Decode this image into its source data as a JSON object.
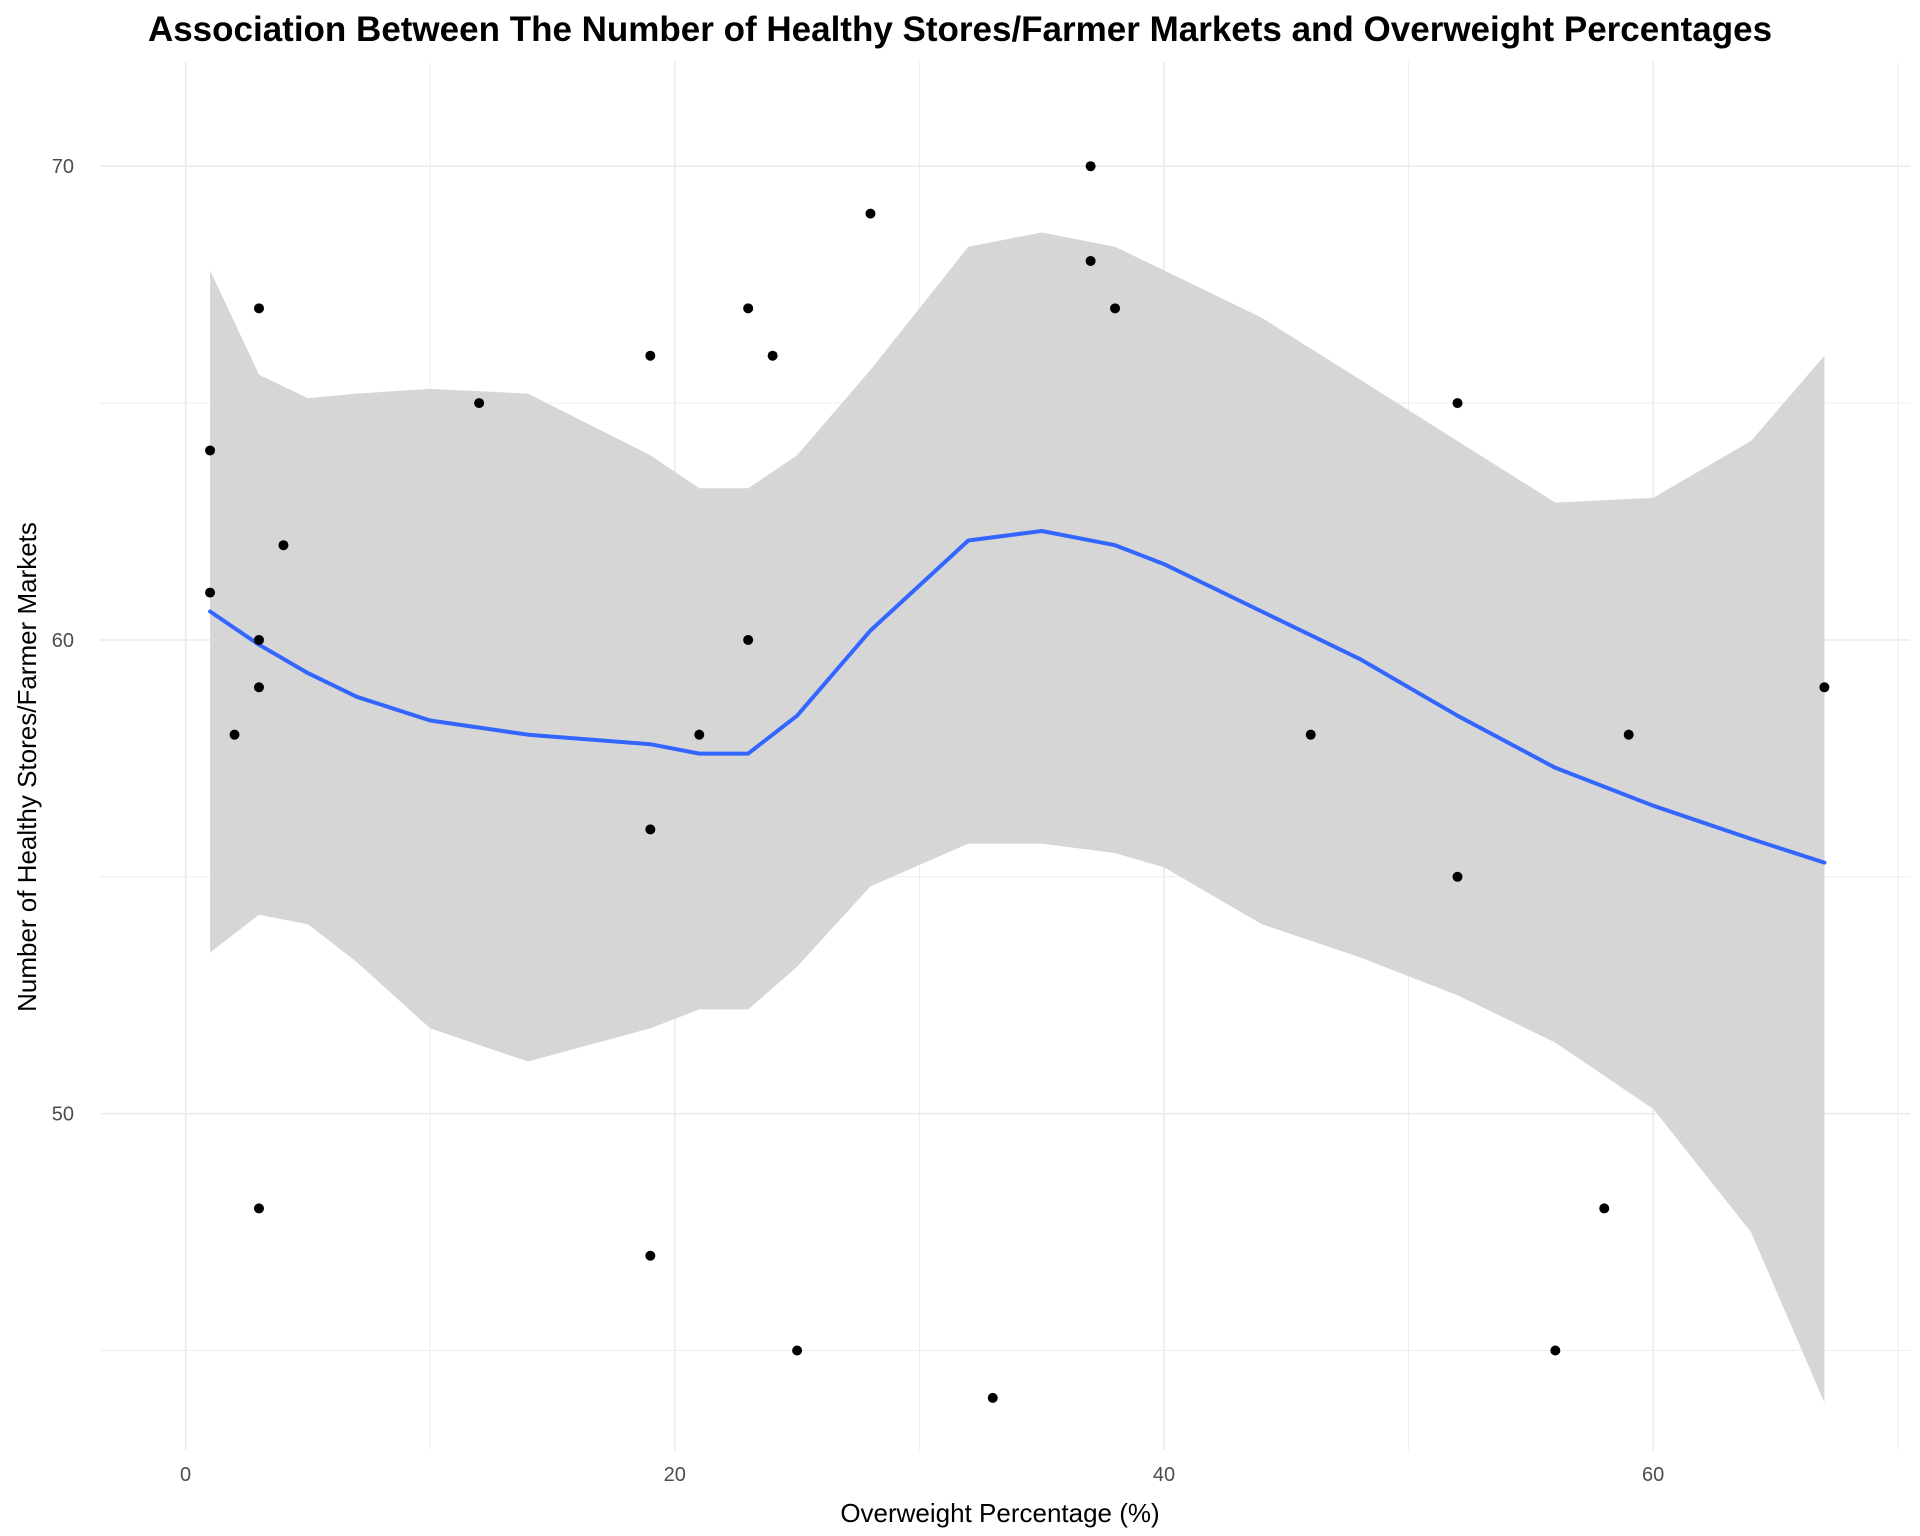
{
  "chart_data": {
    "type": "scatter",
    "title": "Association Between The Number of Healthy Stores/Farmer Markets and Overweight Percentages",
    "xlabel": "Overweight Percentage (%)",
    "ylabel": "Number of Healthy Stores/Farmer Markets",
    "xlim": [
      -3.5,
      70.5
    ],
    "ylim": [
      42.9,
      72.2
    ],
    "x_ticks": [
      0,
      20,
      40,
      60
    ],
    "y_ticks": [
      50,
      60,
      70
    ],
    "grid": true,
    "legend": "none",
    "colors": {
      "points": "#000000",
      "smooth_line": "#3366FF",
      "confidence_band": "#D6D6D6",
      "grid": "#EBEBEB"
    },
    "points": [
      {
        "x": 1,
        "y": 64
      },
      {
        "x": 1,
        "y": 61
      },
      {
        "x": 2,
        "y": 58
      },
      {
        "x": 3,
        "y": 67
      },
      {
        "x": 3,
        "y": 60
      },
      {
        "x": 3,
        "y": 59
      },
      {
        "x": 3,
        "y": 48
      },
      {
        "x": 4,
        "y": 62
      },
      {
        "x": 12,
        "y": 65
      },
      {
        "x": 19,
        "y": 66
      },
      {
        "x": 19,
        "y": 56
      },
      {
        "x": 19,
        "y": 47
      },
      {
        "x": 21,
        "y": 58
      },
      {
        "x": 23,
        "y": 67
      },
      {
        "x": 23,
        "y": 60
      },
      {
        "x": 24,
        "y": 66
      },
      {
        "x": 25,
        "y": 45
      },
      {
        "x": 28,
        "y": 69
      },
      {
        "x": 33,
        "y": 44
      },
      {
        "x": 37,
        "y": 70
      },
      {
        "x": 37,
        "y": 68
      },
      {
        "x": 38,
        "y": 67
      },
      {
        "x": 46,
        "y": 58
      },
      {
        "x": 52,
        "y": 65
      },
      {
        "x": 52,
        "y": 55
      },
      {
        "x": 56,
        "y": 45
      },
      {
        "x": 58,
        "y": 48
      },
      {
        "x": 59,
        "y": 58
      },
      {
        "x": 67,
        "y": 59
      }
    ],
    "smooth": {
      "method": "loess",
      "x": [
        1,
        3,
        5,
        7,
        10,
        14,
        19,
        21,
        23,
        25,
        28,
        32,
        35,
        38,
        40,
        44,
        48,
        52,
        56,
        60,
        64,
        67
      ],
      "y": [
        60.6,
        59.9,
        59.3,
        58.8,
        58.3,
        58.0,
        57.8,
        57.6,
        57.6,
        58.4,
        60.2,
        62.1,
        62.3,
        62.0,
        61.6,
        60.6,
        59.6,
        58.4,
        57.3,
        56.5,
        55.8,
        55.3
      ],
      "lower": [
        53.4,
        54.2,
        54.0,
        53.2,
        51.8,
        51.1,
        51.8,
        52.2,
        52.2,
        53.1,
        54.8,
        55.7,
        55.7,
        55.5,
        55.2,
        54.0,
        53.3,
        52.5,
        51.5,
        50.1,
        47.5,
        43.9
      ],
      "upper": [
        67.8,
        65.6,
        65.1,
        65.2,
        65.3,
        65.2,
        63.9,
        63.2,
        63.2,
        63.9,
        65.7,
        68.3,
        68.6,
        68.3,
        67.8,
        66.8,
        65.5,
        64.2,
        62.9,
        63.0,
        64.2,
        66.0
      ]
    }
  }
}
